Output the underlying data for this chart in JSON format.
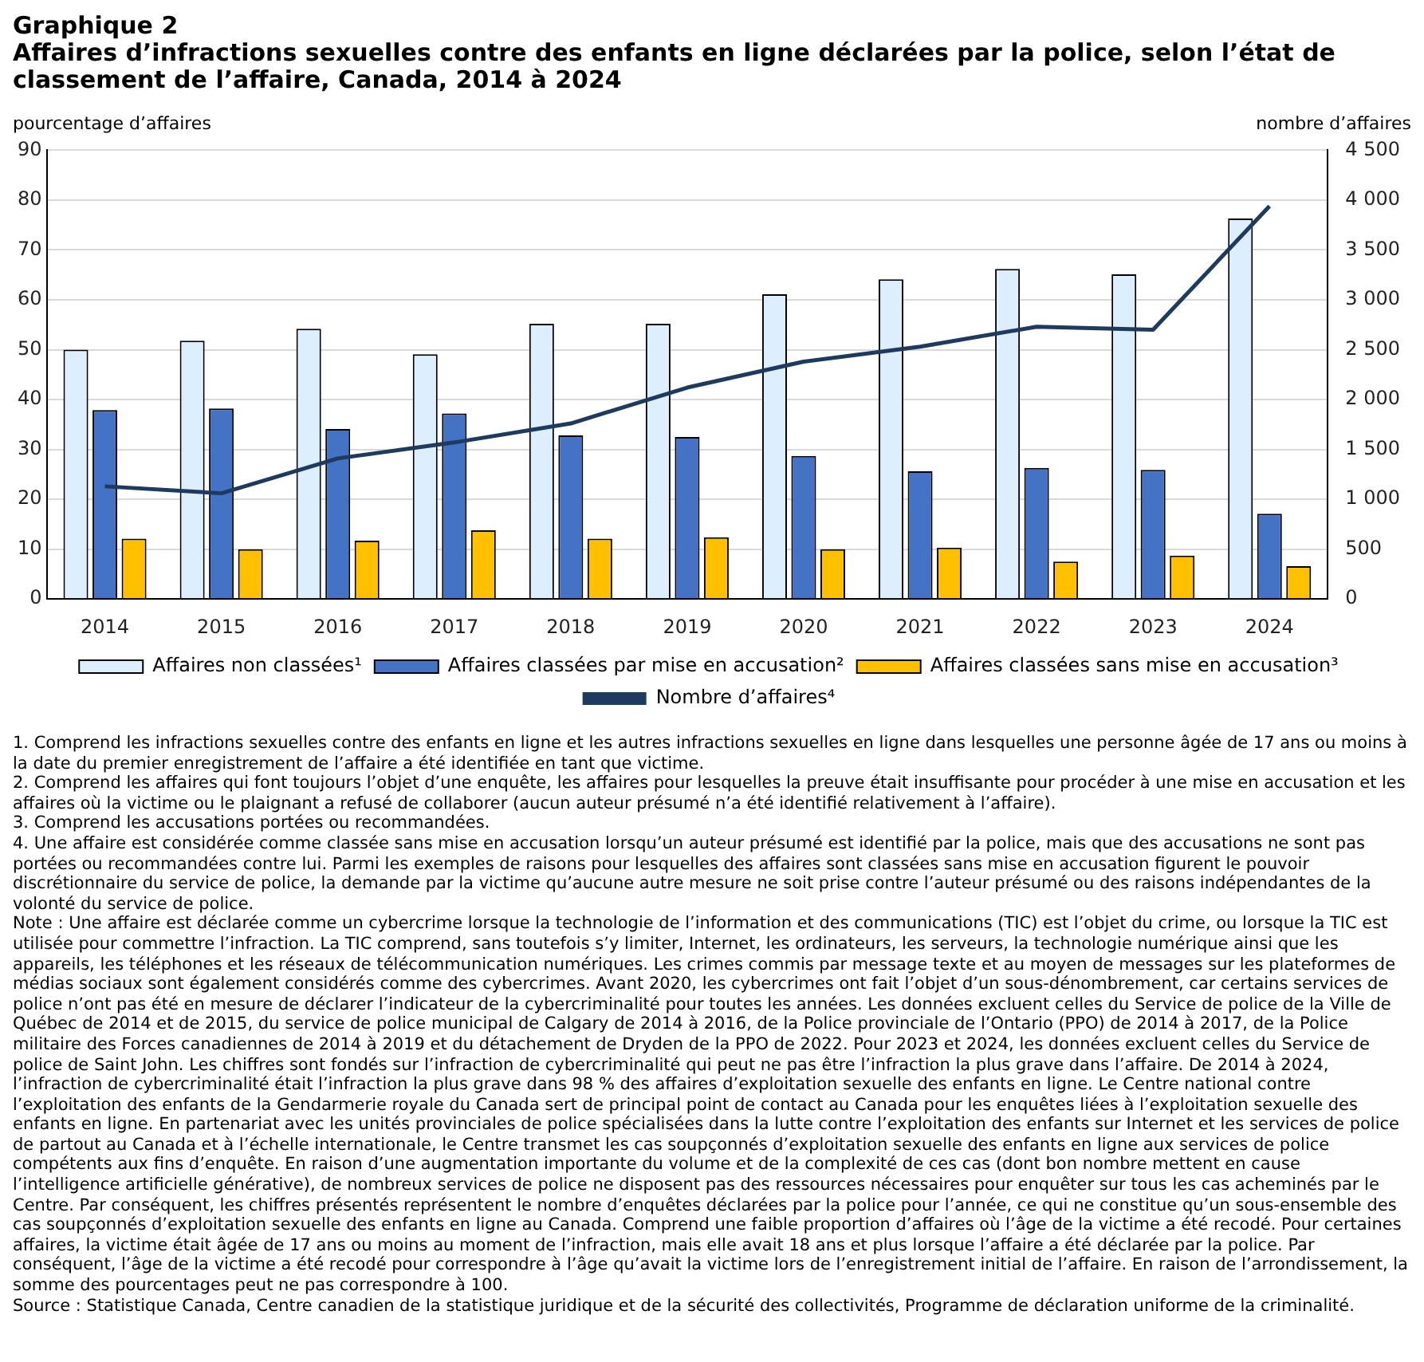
{
  "chart_data": {
    "type": "bar",
    "title": "Graphique 2",
    "subtitle": "Affaires d’infractions  sexuelles contre des enfants en ligne déclarées par la police, selon l’état de classement de l’affaire, Canada, 2014 à 2024",
    "ylabel": "pourcentage d’affaires",
    "y2label": "nombre d’affaires",
    "categories": [
      "2014",
      "2015",
      "2016",
      "2017",
      "2018",
      "2019",
      "2020",
      "2021",
      "2022",
      "2023",
      "2024"
    ],
    "series": [
      {
        "name": "Affaires non classées¹",
        "color": "#ddeeff",
        "values": [
          50.0,
          51.8,
          54.2,
          49.1,
          55.2,
          55.2,
          61.1,
          64.1,
          66.2,
          65.1,
          76.3
        ]
      },
      {
        "name": "Affaires classées par mise en accusation²",
        "color": "#4472c4",
        "values": [
          37.9,
          38.2,
          34.1,
          37.2,
          32.8,
          32.5,
          28.7,
          25.6,
          26.3,
          25.9,
          17.1
        ]
      },
      {
        "name": "Affaires classées sans mise en accusation³",
        "color": "#ffc000",
        "values": [
          12.1,
          10.0,
          11.7,
          13.8,
          12.1,
          12.4,
          10.0,
          10.3,
          7.5,
          8.7,
          6.6
        ]
      },
      {
        "name": "Nombre d’affaires⁴",
        "type": "line",
        "axis": "y2",
        "color": "#1f3a5f",
        "values": [
          1130,
          1060,
          1410,
          1570,
          1760,
          2120,
          2380,
          2530,
          2730,
          2700,
          3940
        ]
      }
    ],
    "ylim": [
      0,
      90
    ],
    "yticks": [
      0,
      10,
      20,
      30,
      40,
      50,
      60,
      70,
      80,
      90
    ],
    "y2lim": [
      0,
      4500
    ],
    "y2ticks": [
      0,
      500,
      {
        "value": 1000,
        "label": "1 000"
      },
      {
        "value": 1500,
        "label": "1 500"
      },
      {
        "value": 2000,
        "label": "2 000"
      },
      {
        "value": 2500,
        "label": "2 500"
      },
      {
        "value": 3000,
        "label": "3 000"
      },
      {
        "value": 3500,
        "label": "3 500"
      },
      {
        "value": 4000,
        "label": "4 000"
      },
      {
        "value": 4500,
        "label": "4 500"
      }
    ],
    "grid": "y",
    "legend": "bottom",
    "marker": "none",
    "annotations": [
      "1. Comprend les infractions sexuelles contre des enfants en ligne et les autres infractions sexuelles en ligne dans lesquelles une personne âgée de 17 ans ou moins à la date du premier enregistrement de l’affaire a été identifiée en tant que victime.",
      "2. Comprend les affaires qui font toujours l’objet d’une enquête, les affaires pour lesquelles la preuve était insuffisante pour procéder à une mise en accusation et les affaires où la victime ou le plaignant a refusé de collaborer (aucun auteur présumé n’a été identifié relativement à l’affaire).",
      "3. Comprend les accusations portées ou recommandées.",
      "4. Une affaire est considérée comme classée sans mise en accusation lorsqu’un auteur présumé est identifié par la police, mais que des accusations ne sont pas portées ou recommandées contre lui. Parmi les exemples de raisons pour lesquelles des affaires sont classées sans mise en accusation figurent le pouvoir discrétionnaire du service de police, la demande par la victime qu’aucune autre mesure ne soit prise contre l’auteur présumé ou des raisons indépendantes de la volonté du service de police.",
      "Note : Une affaire est déclarée comme un cybercrime lorsque la technologie de l’information et des communications (TIC) est l’objet du crime, ou lorsque la TIC est utilisée pour commettre l’infraction. La TIC comprend, sans toutefois s’y limiter, Internet, les ordinateurs, les serveurs, la technologie numérique ainsi que les appareils, les téléphones et les réseaux de télécommunication numériques. Les crimes commis par message texte et au moyen de messages sur les plateformes de médias sociaux sont également considérés comme des cybercrimes. Avant 2020, les cybercrimes ont fait l’objet d’un sous-dénombrement, car certains services de police n’ont pas été en mesure de déclarer l’indicateur de la cybercriminalité pour toutes les années. Les données excluent celles du Service de police de la Ville de Québec de 2014 et de 2015, du service de police municipal de Calgary de 2014 à 2016, de la Police provinciale de l’Ontario (PPO) de 2014 à 2017, de la Police militaire des Forces canadiennes de 2014 à 2019 et du détachement de Dryden de la PPO de 2022. Pour 2023 et 2024, les données excluent celles du Service de police de Saint John. Les chiffres sont fondés sur l’infraction de cybercriminalité qui peut ne pas être l’infraction la plus grave dans l’affaire. De 2014 à 2024, l’infraction de cybercriminalité était l’infraction la plus grave dans 98 % des affaires d’exploitation sexuelle des enfants en ligne. Le Centre national contre l’exploitation des enfants de la Gendarmerie royale du Canada sert de principal point de contact au Canada pour les enquêtes liées à l’exploitation sexuelle des enfants en ligne. En partenariat avec les unités provinciales de police spécialisées dans la lutte contre l’exploitation des enfants sur Internet et les services de police de partout au Canada et à l’échelle internationale, le Centre transmet les cas soupçonnés d’exploitation sexuelle des enfants en ligne aux services de police compétents aux fins d’enquête. En raison d’une augmentation importante du volume et de la complexité de ces cas (dont bon nombre mettent en cause l’intelligence artificielle générative), de nombreux services de police ne disposent pas des ressources nécessaires pour enquêter sur tous les cas acheminés par le Centre. Par conséquent, les chiffres présentés représentent le nombre d’enquêtes déclarées par la police pour l’année, ce qui ne constitue qu’un sous-ensemble des cas soupçonnés d’exploitation sexuelle des enfants en ligne au Canada. Comprend une faible proportion d’affaires où l’âge de la victime a été recodé. Pour certaines affaires, la victime était âgée de 17 ans ou moins au moment de l’infraction, mais elle avait 18 ans et plus lorsque l’affaire a été déclarée par la police. Par conséquent, l’âge de la victime a été recodé pour correspondre à l’âge qu’avait la victime lors de l’enregistrement initial de l’affaire. En raison de l’arrondissement, la somme des pourcentages peut ne pas correspondre à 100.",
      "Source : Statistique Canada, Centre canadien de la statistique juridique et de la sécurité des collectivités, Programme de déclaration uniforme de la criminalité."
    ]
  }
}
